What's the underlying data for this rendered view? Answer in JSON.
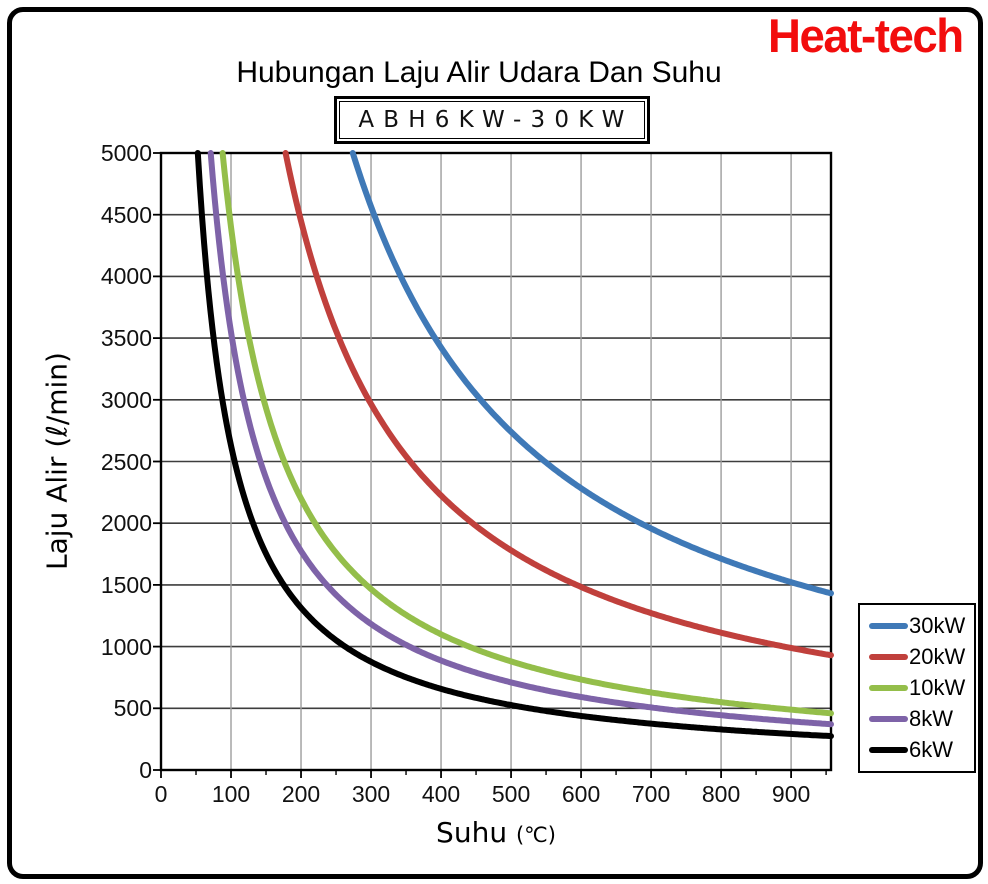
{
  "logo": {
    "text": "Heat-tech",
    "color": "#F20D0D"
  },
  "header": {
    "title": "Hubungan Laju Alir Udara Dan Suhu",
    "model_box": "ABH6KW-30KW"
  },
  "chart_data": {
    "type": "line",
    "title": "Hubungan Laju Alir Udara Dan Suhu",
    "subtitle": "ABH6KW-30KW",
    "xlabel": "Suhu",
    "xlabel_unit": "(℃)",
    "ylabel": "Laju Alir (ℓ/min)",
    "xlim": [
      0,
      957
    ],
    "ylim": [
      0,
      5000
    ],
    "x_ticks": [
      0,
      100,
      200,
      300,
      400,
      500,
      600,
      700,
      800,
      900
    ],
    "x_minor_tick_step": 50,
    "y_ticks": [
      0,
      500,
      1000,
      1500,
      2000,
      2500,
      3000,
      3500,
      4000,
      4500,
      5000
    ],
    "grid": {
      "vertical_every": 100,
      "horizontal_every": 500
    },
    "legend_position": "outside-right-bottom",
    "curve_model": "flow(l/min) = A / temperature(°C), clipped at ylim max",
    "series": [
      {
        "name": "30kW",
        "color": "#3F79B7",
        "A": 1370000,
        "points": [
          [
            274,
            5000
          ],
          [
            300,
            4567
          ],
          [
            350,
            3914
          ],
          [
            400,
            3425
          ],
          [
            450,
            3044
          ],
          [
            500,
            2740
          ],
          [
            550,
            2491
          ],
          [
            600,
            2283
          ],
          [
            650,
            2108
          ],
          [
            700,
            1957
          ],
          [
            750,
            1827
          ],
          [
            800,
            1713
          ],
          [
            850,
            1612
          ],
          [
            900,
            1522
          ],
          [
            950,
            1442
          ]
        ]
      },
      {
        "name": "20kW",
        "color": "#C0403C",
        "A": 890000,
        "points": [
          [
            178,
            5000
          ],
          [
            200,
            4450
          ],
          [
            250,
            3560
          ],
          [
            300,
            2967
          ],
          [
            350,
            2543
          ],
          [
            400,
            2225
          ],
          [
            450,
            1978
          ],
          [
            500,
            1780
          ],
          [
            550,
            1618
          ],
          [
            600,
            1483
          ],
          [
            650,
            1369
          ],
          [
            700,
            1271
          ],
          [
            750,
            1187
          ],
          [
            800,
            1113
          ],
          [
            850,
            1047
          ],
          [
            900,
            989
          ],
          [
            950,
            937
          ]
        ]
      },
      {
        "name": "10kW",
        "color": "#94BE4A",
        "A": 440000,
        "points": [
          [
            88,
            5000
          ],
          [
            100,
            4400
          ],
          [
            150,
            2933
          ],
          [
            200,
            2200
          ],
          [
            250,
            1760
          ],
          [
            300,
            1467
          ],
          [
            350,
            1257
          ],
          [
            400,
            1100
          ],
          [
            450,
            978
          ],
          [
            500,
            880
          ],
          [
            550,
            800
          ],
          [
            600,
            733
          ],
          [
            700,
            629
          ],
          [
            800,
            550
          ],
          [
            900,
            489
          ],
          [
            950,
            463
          ]
        ]
      },
      {
        "name": "8kW",
        "color": "#7E63A8",
        "A": 355000,
        "points": [
          [
            71,
            5000
          ],
          [
            100,
            3550
          ],
          [
            150,
            2367
          ],
          [
            200,
            1775
          ],
          [
            250,
            1420
          ],
          [
            300,
            1183
          ],
          [
            350,
            1014
          ],
          [
            400,
            888
          ],
          [
            450,
            789
          ],
          [
            500,
            710
          ],
          [
            550,
            645
          ],
          [
            600,
            592
          ],
          [
            700,
            507
          ],
          [
            800,
            444
          ],
          [
            900,
            394
          ],
          [
            950,
            374
          ]
        ]
      },
      {
        "name": "6kW",
        "color": "#000000",
        "A": 263000,
        "points": [
          [
            53,
            5000
          ],
          [
            100,
            2630
          ],
          [
            150,
            1753
          ],
          [
            200,
            1315
          ],
          [
            250,
            1052
          ],
          [
            300,
            877
          ],
          [
            350,
            751
          ],
          [
            400,
            658
          ],
          [
            450,
            584
          ],
          [
            500,
            526
          ],
          [
            550,
            478
          ],
          [
            600,
            438
          ],
          [
            700,
            376
          ],
          [
            800,
            329
          ],
          [
            900,
            292
          ],
          [
            950,
            277
          ]
        ]
      }
    ]
  }
}
